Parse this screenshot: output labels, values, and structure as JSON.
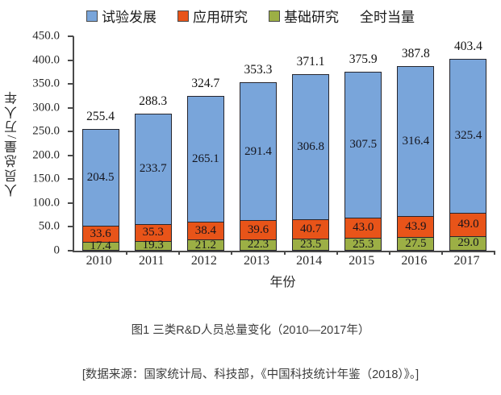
{
  "legend": {
    "items": [
      {
        "label": "试验发展",
        "color": "#79A5DA"
      },
      {
        "label": "应用研究",
        "color": "#E85419"
      },
      {
        "label": "基础研究",
        "color": "#9CAF45"
      }
    ],
    "extra_label": "全时当量"
  },
  "chart_data": {
    "type": "bar",
    "stacked": true,
    "title": "",
    "categories": [
      "2010",
      "2011",
      "2012",
      "2013",
      "2014",
      "2015",
      "2016",
      "2017"
    ],
    "series": [
      {
        "name": "基础研究",
        "color": "#9CAF45",
        "values": [
          17.4,
          19.3,
          21.2,
          22.3,
          23.5,
          25.3,
          27.5,
          29.0
        ]
      },
      {
        "name": "应用研究",
        "color": "#E85419",
        "values": [
          33.6,
          35.3,
          38.4,
          39.6,
          40.7,
          43.0,
          43.9,
          49.0
        ]
      },
      {
        "name": "试验发展",
        "color": "#79A5DA",
        "values": [
          204.5,
          233.7,
          265.1,
          291.4,
          306.8,
          307.5,
          316.4,
          325.4
        ]
      }
    ],
    "totals": [
      255.4,
      288.3,
      324.7,
      353.3,
      371.1,
      375.9,
      387.8,
      403.4
    ],
    "ylabel": "人员总量/万人年",
    "xlabel": "年份",
    "ylim": [
      0,
      450
    ],
    "grid": false,
    "legend_position": "top",
    "yticks": [
      "450.0",
      "400.0",
      "350.0",
      "300.0",
      "250.0",
      "200.0",
      "150.0",
      "100.0",
      "50.0",
      "0"
    ]
  },
  "caption": "图1 三类R&D人员总量变化（2010—2017年）",
  "source": "[数据来源：国家统计局、科技部，《中国科技统计年鉴（2018）》。]"
}
